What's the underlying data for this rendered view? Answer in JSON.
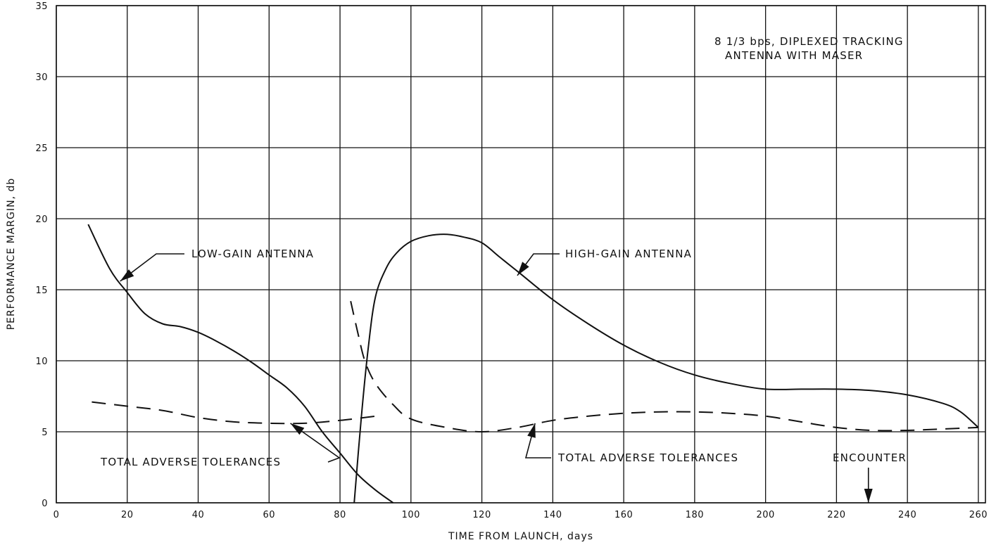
{
  "chart_data": {
    "type": "line",
    "title": "",
    "xlabel": "TIME FROM LAUNCH, days",
    "ylabel": "PERFORMANCE MARGIN, db",
    "xlim": [
      0,
      262
    ],
    "ylim": [
      0,
      35
    ],
    "x_ticks": [
      0,
      20,
      40,
      60,
      80,
      100,
      120,
      140,
      160,
      180,
      200,
      220,
      240,
      260
    ],
    "y_ticks": [
      0,
      5,
      10,
      15,
      20,
      25,
      30,
      35
    ],
    "grid": true,
    "series": [
      {
        "name": "LOW-GAIN ANTENNA",
        "style": "solid",
        "x": [
          9,
          15,
          20,
          25,
          30,
          35,
          40,
          45,
          50,
          55,
          60,
          65,
          70,
          75,
          80,
          85,
          90,
          95
        ],
        "y": [
          19.6,
          16.5,
          14.8,
          13.3,
          12.6,
          12.4,
          12.0,
          11.4,
          10.7,
          9.9,
          9.0,
          8.1,
          6.8,
          5.0,
          3.5,
          2.0,
          0.9,
          0
        ]
      },
      {
        "name": "HIGH-GAIN ANTENNA",
        "style": "solid",
        "x": [
          84,
          86,
          88,
          90,
          93,
          96,
          100,
          105,
          110,
          115,
          120,
          125,
          130,
          140,
          150,
          160,
          170,
          180,
          190,
          200,
          210,
          220,
          230,
          240,
          250,
          255,
          260
        ],
        "y": [
          0,
          6,
          11,
          14.5,
          16.5,
          17.6,
          18.4,
          18.8,
          18.9,
          18.7,
          18.3,
          17.3,
          16.3,
          14.3,
          12.6,
          11.1,
          9.9,
          9.0,
          8.4,
          8.0,
          8.0,
          8.0,
          7.9,
          7.6,
          7.0,
          6.4,
          5.3
        ]
      },
      {
        "name": "TOTAL ADVERSE TOLERANCES (LOW-GAIN)",
        "style": "dashed",
        "x": [
          10,
          20,
          30,
          40,
          50,
          60,
          70,
          80,
          90
        ],
        "y": [
          7.1,
          6.8,
          6.5,
          6.0,
          5.7,
          5.6,
          5.6,
          5.8,
          6.1
        ]
      },
      {
        "name": "TOTAL ADVERSE TOLERANCES (HIGH-GAIN)",
        "style": "dashed",
        "x": [
          83,
          85,
          87,
          90,
          95,
          100,
          110,
          120,
          130,
          140,
          150,
          160,
          170,
          180,
          190,
          200,
          210,
          220,
          230,
          240,
          250,
          260
        ],
        "y": [
          14.2,
          12.0,
          10.0,
          8.4,
          6.9,
          5.9,
          5.3,
          5.0,
          5.3,
          5.8,
          6.1,
          6.3,
          6.4,
          6.4,
          6.3,
          6.1,
          5.7,
          5.3,
          5.1,
          5.1,
          5.2,
          5.3
        ]
      }
    ],
    "annotations": [
      {
        "text": "8 1/3 bps, DIPLEXED TRACKING",
        "position": "top-right"
      },
      {
        "text": "ANTENNA WITH MASER",
        "position": "top-right"
      },
      {
        "text": "LOW-GAIN ANTENNA",
        "points_to": {
          "x": 18,
          "y": 15.6
        }
      },
      {
        "text": "HIGH-GAIN ANTENNA",
        "points_to": {
          "x": 130,
          "y": 16
        }
      },
      {
        "text": "TOTAL ADVERSE TOLERANCES",
        "points_to": {
          "x": 66,
          "y": 5.6
        }
      },
      {
        "text": "TOTAL ADVERSE TOLERANCES",
        "points_to": {
          "x": 135,
          "y": 5.6
        }
      },
      {
        "text": "ENCOUNTER",
        "points_to": {
          "x": 229,
          "y": 0
        }
      }
    ]
  }
}
